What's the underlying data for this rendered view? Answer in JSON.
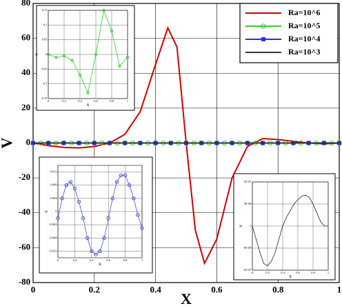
{
  "chart_data": [
    {
      "type": "line",
      "xlabel": "X",
      "ylabel": "V",
      "xlim": [
        0,
        1
      ],
      "ylim": [
        -80,
        80
      ],
      "xticks": [
        0,
        0.2,
        0.4,
        0.6,
        0.8,
        1
      ],
      "yticks": [
        -80,
        -60,
        -40,
        -20,
        0,
        20,
        40,
        60,
        80
      ],
      "grid": true,
      "legend": "upper right",
      "series": [
        {
          "name": "Ra=10^6",
          "color": "#cc0000",
          "x": [
            0,
            0.05,
            0.1,
            0.15,
            0.2,
            0.25,
            0.3,
            0.35,
            0.4,
            0.44,
            0.47,
            0.5,
            0.53,
            0.56,
            0.6,
            0.65,
            0.7,
            0.75,
            0.8,
            0.85,
            0.9,
            0.95,
            1
          ],
          "values": [
            0,
            -1.5,
            -2.5,
            -2.8,
            -2,
            0,
            5,
            18,
            45,
            66,
            55,
            0,
            -50,
            -69,
            -55,
            -20,
            -2,
            2.5,
            2,
            1,
            0,
            -0.5,
            0
          ]
        },
        {
          "name": "Ra=10^5",
          "color": "#33cc33",
          "marker": "circle",
          "x": [
            0,
            0.025,
            0.05,
            0.075,
            0.1,
            0.125,
            0.15,
            0.175,
            0.2,
            0.225,
            0.25,
            0.275,
            0.3,
            0.325,
            0.35,
            0.375,
            0.4,
            0.425,
            0.45,
            0.475,
            0.5,
            0.525,
            0.55,
            0.575,
            0.6,
            0.625,
            0.65,
            0.675,
            0.7,
            0.725,
            0.75,
            0.775,
            0.8,
            0.825,
            0.85,
            0.875,
            0.9,
            0.925,
            0.95,
            0.975,
            1
          ],
          "values": [
            0,
            0,
            0,
            0,
            0,
            0,
            0,
            0,
            0,
            0,
            0,
            0,
            0,
            0,
            0,
            0,
            0,
            0,
            0,
            0,
            0,
            0,
            0,
            0,
            0,
            0,
            0,
            0,
            0,
            0,
            0,
            0,
            0,
            0,
            0,
            0,
            0,
            0,
            0,
            0,
            0
          ]
        },
        {
          "name": "Ra=10^4",
          "color": "#2233dd",
          "marker": "square",
          "x": [
            0,
            0.05,
            0.1,
            0.15,
            0.2,
            0.25,
            0.3,
            0.35,
            0.4,
            0.45,
            0.5,
            0.55,
            0.6,
            0.65,
            0.7,
            0.75,
            0.8,
            0.85,
            0.9,
            0.95,
            1
          ],
          "values": [
            0,
            0,
            0,
            0,
            0,
            0,
            0,
            0,
            0,
            0,
            0,
            0,
            0,
            0,
            0,
            0,
            0,
            0,
            0,
            0,
            0
          ]
        },
        {
          "name": "Ra=10^3",
          "color": "#333333",
          "x": [
            0,
            1
          ],
          "values": [
            0,
            0
          ]
        }
      ]
    },
    {
      "type": "line",
      "xlabel": "X",
      "ylabel": "V",
      "xlim": [
        0,
        1
      ],
      "ylim": [
        -0.15,
        0.15
      ],
      "xticks": [
        0,
        0.2,
        0.4,
        0.6,
        0.8,
        1
      ],
      "yticks": [
        -0.15,
        -0.1,
        -0.05,
        0,
        0.05,
        0.1,
        0.15
      ],
      "grid": true,
      "series": [
        {
          "color": "#33cc33",
          "marker": "circle",
          "x": [
            0,
            0.1,
            0.2,
            0.3,
            0.4,
            0.5,
            0.6,
            0.7,
            0.8,
            0.9,
            1
          ],
          "values": [
            0,
            -0.01,
            -0.005,
            -0.02,
            -0.07,
            -0.13,
            0,
            0.15,
            0.08,
            -0.04,
            -0.01
          ]
        }
      ]
    },
    {
      "type": "line",
      "xlabel": "X",
      "ylabel": "V",
      "xlim": [
        0,
        1
      ],
      "ylim": [
        -0.014,
        0.014
      ],
      "xticks": [
        0,
        0.2,
        0.4,
        0.6,
        0.8,
        1
      ],
      "yticks": [
        -0.012,
        -0.008,
        -0.004,
        0,
        0.004,
        0.008,
        0.012
      ],
      "grid": true,
      "series": [
        {
          "color": "#4455cc",
          "marker": "circle",
          "x": [
            0,
            0.05,
            0.1,
            0.15,
            0.2,
            0.25,
            0.3,
            0.35,
            0.4,
            0.45,
            0.5,
            0.55,
            0.6,
            0.65,
            0.7,
            0.75,
            0.8,
            0.85,
            0.9,
            0.95,
            1
          ],
          "values": [
            -0.002,
            0.004,
            0.008,
            0.009,
            0.007,
            0.003,
            -0.002,
            -0.008,
            -0.012,
            -0.013,
            -0.012,
            -0.008,
            -0.002,
            0.004,
            0.009,
            0.011,
            0.011,
            0.008,
            0.004,
            -0.001,
            -0.005
          ]
        }
      ]
    },
    {
      "type": "line",
      "xlabel": "X",
      "ylabel": "V",
      "xlim": [
        0,
        1
      ],
      "ylim": [
        -1e-07,
        1e-07
      ],
      "xticks": [
        0,
        0.2,
        0.4,
        0.6,
        0.8,
        1
      ],
      "yticks": [
        {
          "value": -1e-07,
          "label": "-1E-07"
        },
        {
          "value": -5e-08,
          "label": "-5E-08"
        },
        0,
        {
          "value": 5e-08,
          "label": "5E-08"
        },
        {
          "value": 1e-07,
          "label": "1E-07"
        }
      ],
      "grid": true,
      "series": [
        {
          "color": "#222222",
          "x": [
            0,
            0.05,
            0.1,
            0.15,
            0.2,
            0.25,
            0.3,
            0.35,
            0.4,
            0.45,
            0.5,
            0.55,
            0.6,
            0.65,
            0.7,
            0.75,
            0.8,
            0.85,
            0.9,
            0.95,
            1
          ],
          "values": [
            0,
            -3e-08,
            -6e-08,
            -8.5e-08,
            -9e-08,
            -8e-08,
            -6e-08,
            -3e-08,
            0,
            2e-08,
            3.5e-08,
            5e-08,
            6e-08,
            6.8e-08,
            7e-08,
            6.5e-08,
            5e-08,
            3e-08,
            1e-08,
            0,
            0
          ]
        }
      ]
    }
  ]
}
